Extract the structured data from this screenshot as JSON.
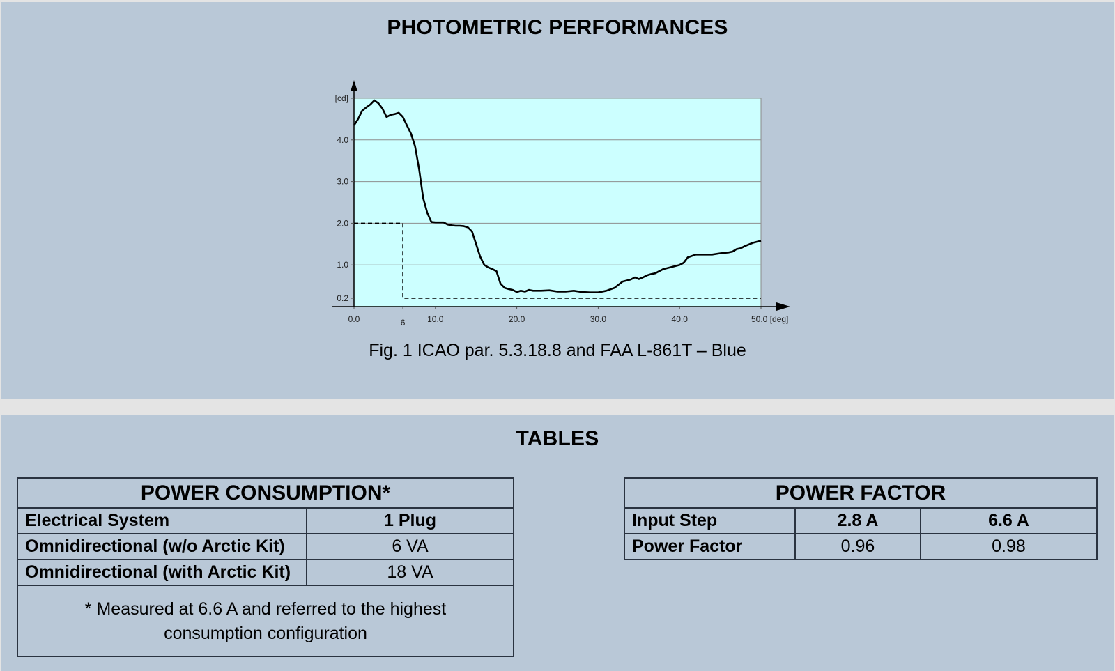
{
  "photometric": {
    "title": "PHOTOMETRIC PERFORMANCES",
    "caption": "Fig. 1 ICAO par. 5.3.18.8 and FAA L-861T – Blue"
  },
  "chart_data": {
    "type": "line",
    "title": "",
    "xlabel": "[deg]",
    "ylabel": "[cd]",
    "xlim": [
      0,
      50
    ],
    "ylim": [
      0,
      5
    ],
    "grid": true,
    "x_ticks": [
      {
        "value": 0,
        "label": "0.0"
      },
      {
        "value": 6,
        "label": "6"
      },
      {
        "value": 10,
        "label": "10.0"
      },
      {
        "value": 20,
        "label": "20.0"
      },
      {
        "value": 30,
        "label": "30.0"
      },
      {
        "value": 40,
        "label": "40.0"
      },
      {
        "value": 50,
        "label": "50.0 [deg]"
      }
    ],
    "y_ticks": [
      {
        "value": 0.2,
        "label": "0.2"
      },
      {
        "value": 1,
        "label": "1.0"
      },
      {
        "value": 2,
        "label": "2.0"
      },
      {
        "value": 3,
        "label": "3.0"
      },
      {
        "value": 4,
        "label": "4.0"
      },
      {
        "value": 5,
        "label": "[cd]"
      }
    ],
    "series": [
      {
        "style": "solid",
        "x": [
          0,
          0.5,
          1,
          1.5,
          2,
          2.5,
          3,
          3.5,
          4,
          4.5,
          5,
          5.5,
          6,
          6.5,
          7,
          7.5,
          8,
          8.5,
          9,
          9.5,
          10,
          10.5,
          11,
          11.5,
          12,
          12.5,
          13,
          13.5,
          14,
          14.5,
          15,
          15.5,
          16,
          16.5,
          17,
          17.5,
          18,
          18.5,
          19,
          19.5,
          20,
          20.5,
          21,
          21.5,
          22,
          23,
          24,
          25,
          26,
          27,
          28,
          29,
          30,
          31,
          32,
          33,
          34,
          34.5,
          35,
          35.5,
          36,
          36.5,
          37,
          37.5,
          38,
          39,
          40,
          40.5,
          41,
          42,
          43,
          44,
          45,
          46,
          46.5,
          47,
          47.5,
          48,
          49,
          50
        ],
        "y": [
          4.35,
          4.5,
          4.7,
          4.78,
          4.85,
          4.95,
          4.88,
          4.75,
          4.55,
          4.6,
          4.62,
          4.65,
          4.55,
          4.35,
          4.15,
          3.85,
          3.3,
          2.6,
          2.25,
          2.03,
          2.02,
          2.02,
          2.02,
          1.97,
          1.95,
          1.94,
          1.94,
          1.93,
          1.9,
          1.8,
          1.5,
          1.2,
          1.0,
          0.94,
          0.9,
          0.85,
          0.55,
          0.45,
          0.42,
          0.4,
          0.35,
          0.38,
          0.36,
          0.4,
          0.38,
          0.38,
          0.39,
          0.36,
          0.36,
          0.38,
          0.35,
          0.34,
          0.34,
          0.38,
          0.45,
          0.6,
          0.65,
          0.7,
          0.66,
          0.7,
          0.75,
          0.78,
          0.8,
          0.85,
          0.9,
          0.95,
          1.0,
          1.05,
          1.18,
          1.25,
          1.25,
          1.25,
          1.28,
          1.3,
          1.32,
          1.38,
          1.4,
          1.45,
          1.53,
          1.58
        ]
      },
      {
        "style": "dashed",
        "x": [
          0,
          6,
          6,
          50
        ],
        "y": [
          2.0,
          2.0,
          0.2,
          0.2
        ]
      }
    ]
  },
  "tables": {
    "title": "TABLES",
    "power_consumption": {
      "caption": "POWER CONSUMPTION*",
      "header": [
        "Electrical System",
        "1 Plug"
      ],
      "rows": [
        [
          "Omnidirectional (w/o Arctic Kit)",
          "6 VA"
        ],
        [
          "Omnidirectional (with Arctic Kit)",
          "18 VA"
        ]
      ],
      "note": "* Measured at 6.6 A and referred to the highest consumption configuration"
    },
    "power_factor": {
      "caption": "POWER FACTOR",
      "header": [
        "Input Step",
        "2.8 A",
        "6.6 A"
      ],
      "rows": [
        [
          "Power Factor",
          "0.96",
          "0.98"
        ]
      ]
    }
  }
}
